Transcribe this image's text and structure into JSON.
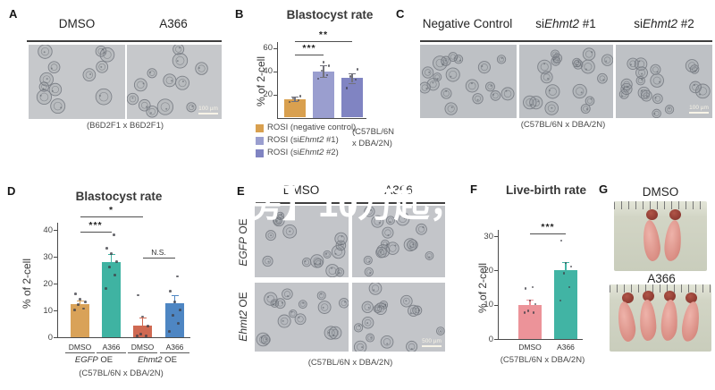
{
  "figure": {
    "watermark_text": "房】10万起，",
    "panels": {
      "A": {
        "label": "A",
        "col_headers": [
          "DMSO",
          "A366"
        ],
        "scale_bar": "100 µm",
        "caption": "(B6D2F1 x B6D2F1)"
      },
      "B": {
        "label": "B",
        "legend": [
          {
            "pre": "ROSI (negative control)",
            "it": "",
            "post": ""
          },
          {
            "pre": "ROSI (si",
            "it": "Ehmt2",
            "post": " #1)"
          },
          {
            "pre": "ROSI (si",
            "it": "Ehmt2",
            "post": " #2)"
          }
        ],
        "strain_line1": "(C57BL/6N",
        "strain_line2": "x DBA/2N)"
      },
      "C": {
        "label": "C",
        "col_headers": [
          {
            "pre": "Negative Control",
            "it": "",
            "post": ""
          },
          {
            "pre": "si",
            "it": "Ehmt2",
            "post": " #1"
          },
          {
            "pre": "si",
            "it": "Ehmt2",
            "post": " #2"
          }
        ],
        "scale_bar": "100 µm",
        "caption": "(C57BL/6N x DBA/2N)"
      },
      "D": {
        "label": "D",
        "group_labels": [
          {
            "pre": "",
            "it": "EGFP",
            "post": " OE"
          },
          {
            "pre": "",
            "it": "Ehmt2",
            "post": " OE"
          }
        ],
        "caption": "(C57BL/6N x DBA/2N)"
      },
      "E": {
        "label": "E",
        "col_headers": [
          "DMSO",
          "A366"
        ],
        "row_labels": [
          {
            "pre": "",
            "it": "EGFP",
            "post": " OE"
          },
          {
            "pre": "",
            "it": "Ehmt2",
            "post": " OE"
          }
        ],
        "scale_bar": "500 µm",
        "caption": "(C57BL/6N x DBA/2N)"
      },
      "F": {
        "label": "F",
        "caption": "(C57BL/6N x DBA/2N)"
      },
      "G": {
        "label": "G",
        "photo_headers": [
          "DMSO",
          "A366"
        ]
      }
    }
  },
  "chart_data": [
    {
      "id": "B",
      "type": "bar",
      "title": "Blastocyst rate",
      "ylabel": "% of 2-cell",
      "ylim": [
        0,
        60
      ],
      "yticks": [
        20,
        40,
        60
      ],
      "categories": [
        "ROSI (negative control)",
        "ROSI (siEhmt2 #1)",
        "ROSI (siEhmt2 #2)"
      ],
      "values": [
        16,
        40,
        34
      ],
      "errors": [
        2,
        5,
        4
      ],
      "colors": [
        "#d9a04f",
        "#9a9ecf",
        "#8084c2"
      ],
      "points": [
        [
          13,
          14.5,
          16,
          18
        ],
        [
          33,
          36,
          40,
          44,
          47
        ],
        [
          25,
          32,
          35,
          41
        ]
      ],
      "sig": [
        {
          "label": "***",
          "from": 0,
          "to": 1
        },
        {
          "label": "**",
          "from": 0,
          "to": 2
        }
      ],
      "note": "(C57BL/6N x DBA/2N)",
      "legend_position": "bottom-left"
    },
    {
      "id": "D",
      "type": "bar",
      "title": "Blastocyst rate",
      "ylabel": "% of 2-cell",
      "ylim": [
        0,
        40
      ],
      "yticks": [
        0,
        10,
        20,
        30,
        40
      ],
      "categories": [
        "DMSO",
        "A366",
        "DMSO",
        "A366"
      ],
      "groups": [
        "EGFP OE",
        "Ehmt2 OE"
      ],
      "values": [
        12.5,
        28,
        4.5,
        12.8
      ],
      "errors": [
        1.2,
        3,
        3,
        3
      ],
      "colors": [
        "#d9a258",
        "#3fb3a2",
        "#cf6952",
        "#4e86c3"
      ],
      "points": [
        [
          10,
          10.5,
          12,
          13,
          14,
          16
        ],
        [
          18,
          23,
          26,
          28,
          31,
          33,
          38
        ],
        [
          0,
          0.5,
          1,
          4,
          7.5,
          15.5
        ],
        [
          2,
          5,
          8,
          10,
          13,
          17,
          22.5
        ]
      ],
      "sig": [
        {
          "label": "***",
          "from": 0,
          "to": 1
        },
        {
          "label": "*",
          "from": 0,
          "to": 2
        },
        {
          "label": "N.S.",
          "from": 2,
          "to": 3
        }
      ],
      "note": "(C57BL/6N x DBA/2N)"
    },
    {
      "id": "F",
      "type": "bar",
      "title": "Live-birth rate",
      "ylabel": "% of 2-cell",
      "ylim": [
        0,
        30
      ],
      "yticks": [
        0,
        10,
        20,
        30
      ],
      "categories": [
        "DMSO",
        "A366"
      ],
      "values": [
        10,
        20
      ],
      "errors": [
        1.5,
        2.5
      ],
      "colors": [
        "#ec9399",
        "#41b4a4"
      ],
      "points": [
        [
          7.5,
          7.5,
          8,
          10,
          11,
          14.5,
          15
        ],
        [
          11,
          15,
          19,
          21,
          22,
          28.5
        ]
      ],
      "sig": [
        {
          "label": "***",
          "from": 0,
          "to": 1
        }
      ],
      "note": "(C57BL/6N x DBA/2N)"
    }
  ]
}
